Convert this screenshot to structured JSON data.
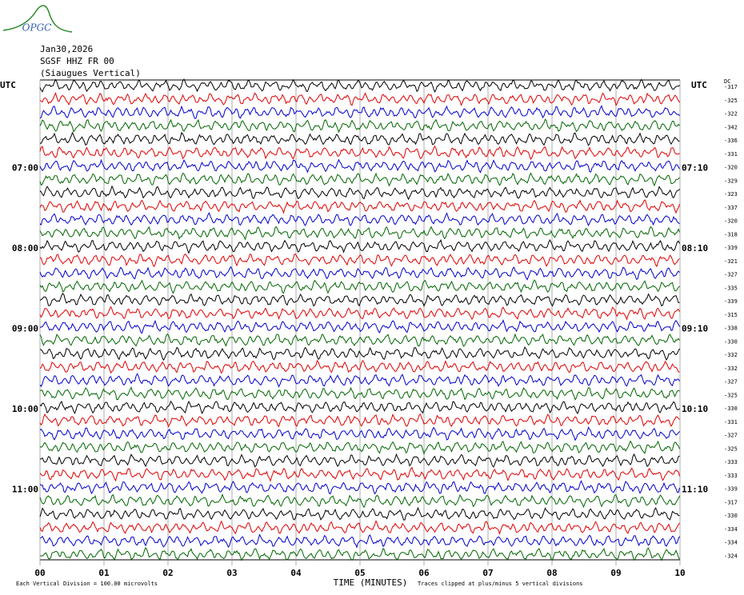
{
  "header": {
    "logo": "OPGC",
    "date": "Jan30,2026",
    "station": "SGSF HHZ FR 00",
    "location": "(Siaugues Vertical)"
  },
  "left_axis": {
    "title": "UTC",
    "labels": [
      null,
      null,
      null,
      null,
      null,
      null,
      "07:00",
      null,
      null,
      null,
      null,
      null,
      "08:00",
      null,
      null,
      null,
      null,
      null,
      "09:00",
      null,
      null,
      null,
      null,
      null,
      "10:00",
      null,
      null,
      null,
      null,
      null,
      "11:00",
      null,
      null,
      null,
      null,
      null
    ]
  },
  "right_axis": {
    "title": "UTC",
    "labels": [
      null,
      null,
      null,
      null,
      null,
      null,
      "07:10",
      null,
      null,
      null,
      null,
      null,
      "08:10",
      null,
      null,
      null,
      null,
      null,
      "09:10",
      null,
      null,
      null,
      null,
      null,
      "10:10",
      null,
      null,
      null,
      null,
      null,
      "11:10",
      null,
      null,
      null,
      null,
      null
    ],
    "dc_title": "DC",
    "dc_offsets": [
      -317,
      -325,
      -322,
      -342,
      -336,
      -331,
      -320,
      -329,
      -323,
      -337,
      -320,
      -318,
      -339,
      -321,
      -327,
      -335,
      -339,
      -315,
      -338,
      -330,
      -332,
      -332,
      -327,
      -325,
      -330,
      -331,
      -327,
      -325,
      -333,
      -333,
      -339,
      -317,
      -330,
      -334,
      -334,
      -324
    ]
  },
  "x_axis": {
    "title": "TIME (MINUTES)",
    "xlim": [
      0,
      10
    ],
    "ticks": [
      {
        "value": 0,
        "label": "00"
      },
      {
        "value": 1,
        "label": "01"
      },
      {
        "value": 2,
        "label": "02"
      },
      {
        "value": 3,
        "label": "03"
      },
      {
        "value": 4,
        "label": "04"
      },
      {
        "value": 5,
        "label": "05"
      },
      {
        "value": 6,
        "label": "06"
      },
      {
        "value": 7,
        "label": "07"
      },
      {
        "value": 8,
        "label": "08"
      },
      {
        "value": 9,
        "label": "09"
      },
      {
        "value": 10,
        "label": "10"
      }
    ]
  },
  "trace_colors": [
    "#000000",
    "#e00000",
    "#0000cc",
    "#006600"
  ],
  "footer": {
    "scale": "Each Vertical Division =  100.00 microvolts",
    "clip": "Traces clipped at plus/minus 5 vertical divisions"
  }
}
